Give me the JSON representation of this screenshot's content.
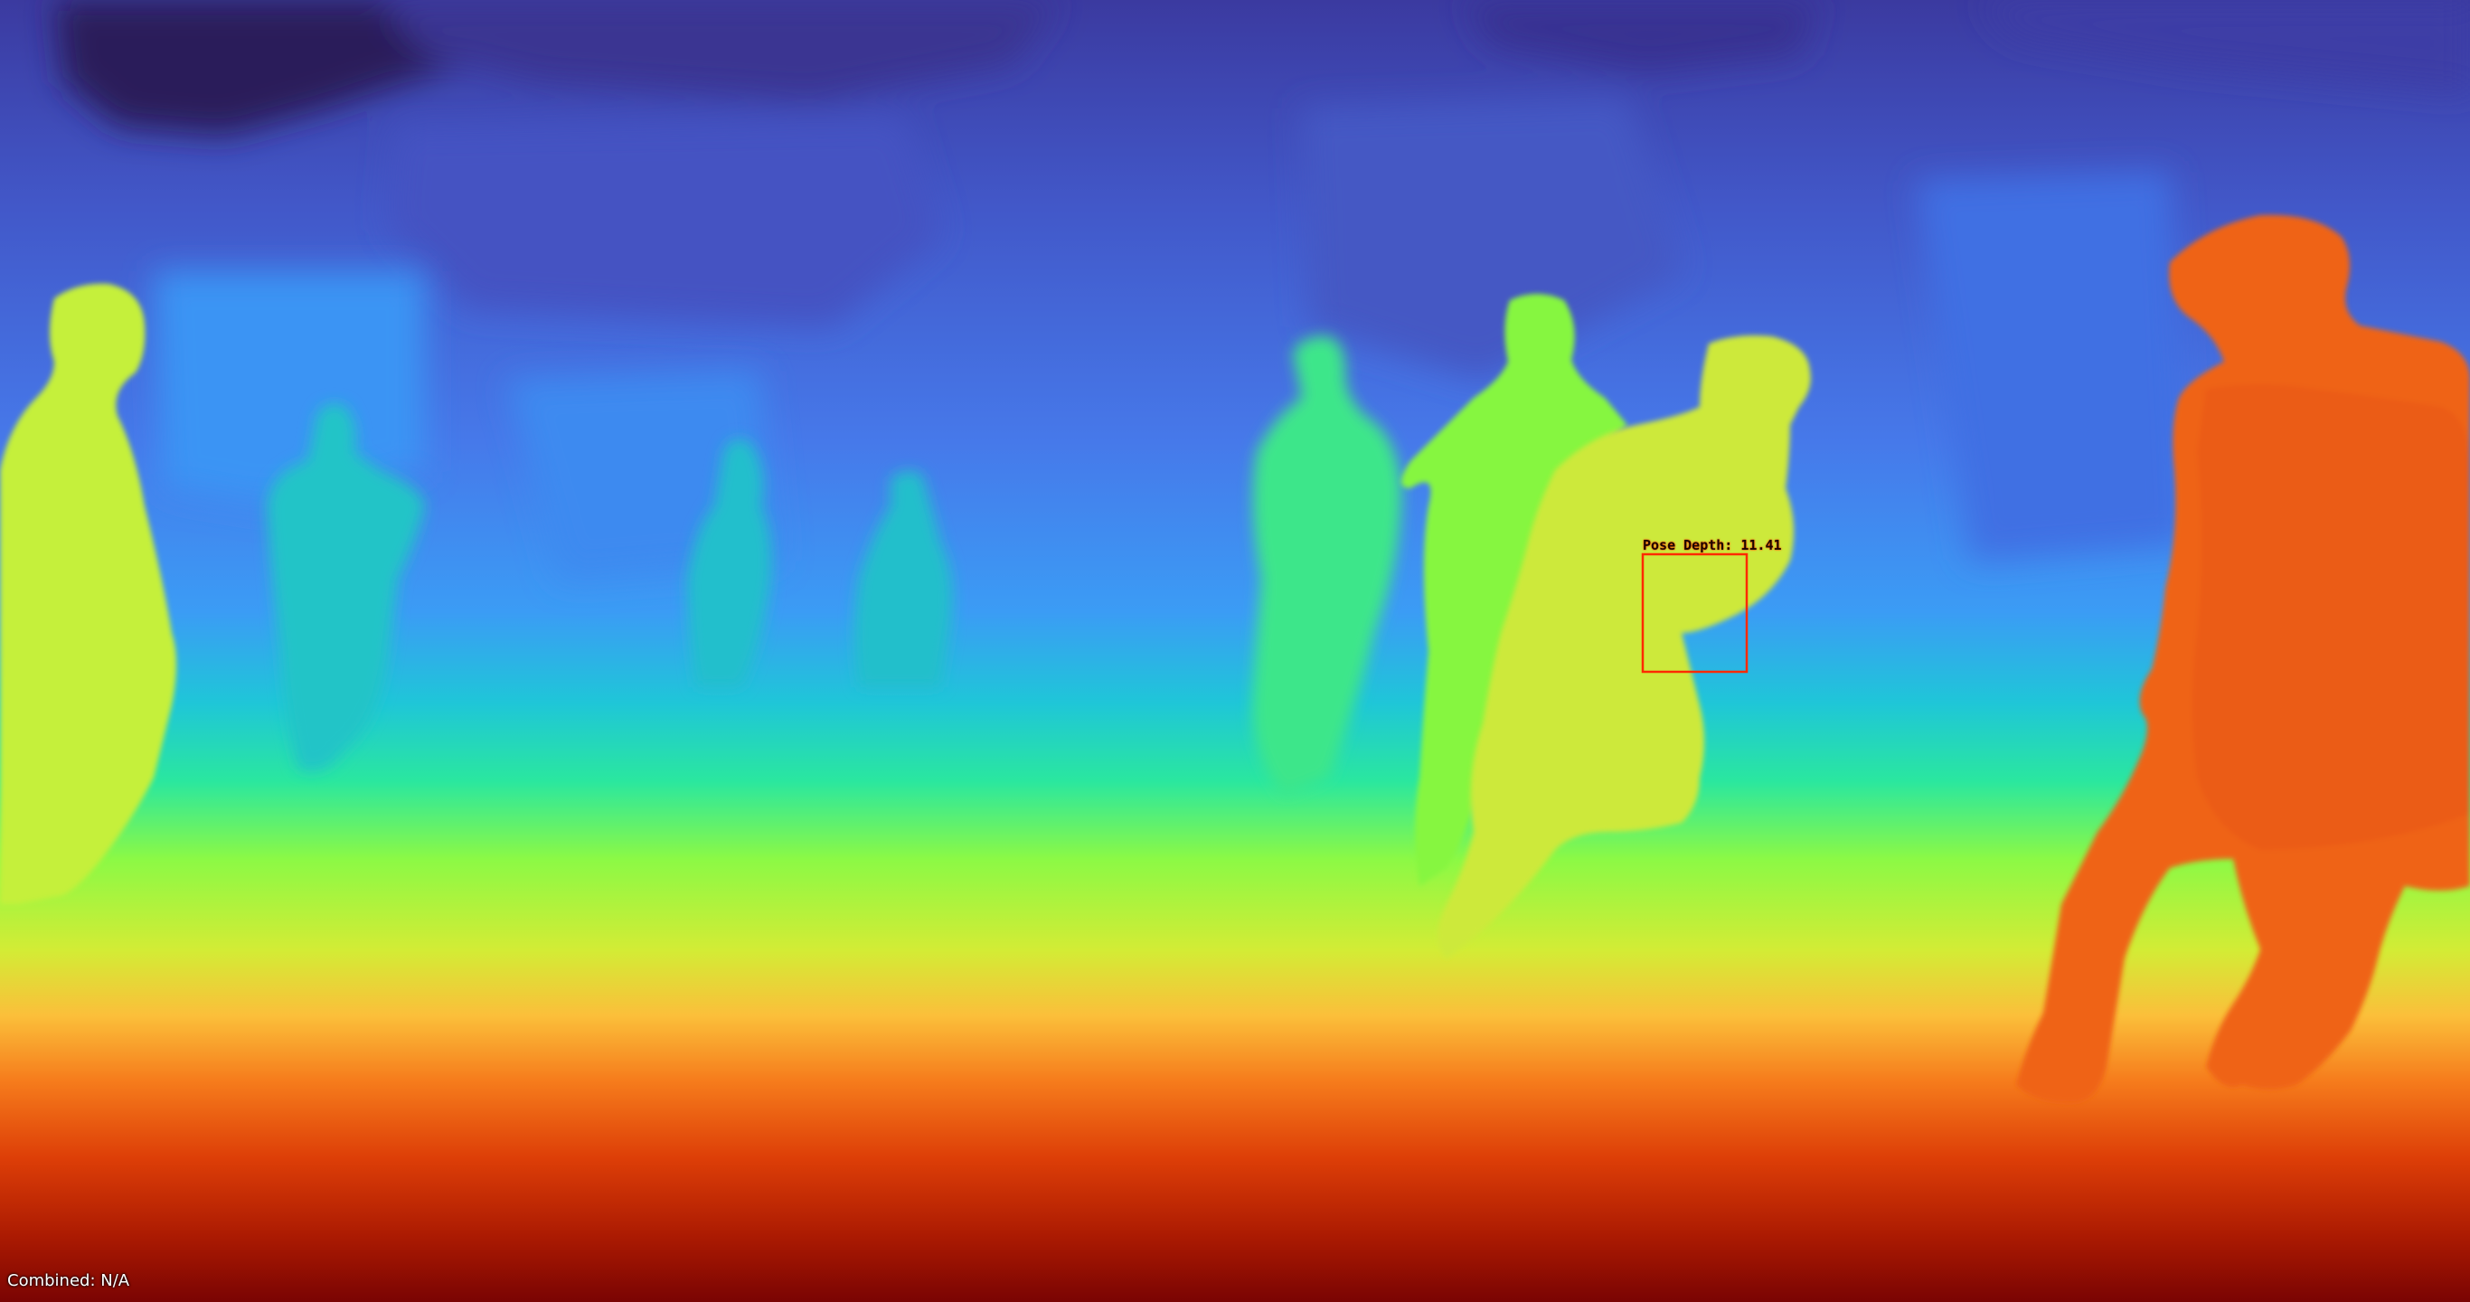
{
  "image": {
    "kind": "depth-map visualization",
    "colormap": "turbo",
    "colors": {
      "far": "#30123b",
      "mid_far": "#4662d7",
      "mid": "#36aaf9",
      "mid_near": "#1ae4b6",
      "near_mid": "#a4fc3c",
      "near": "#fbb938",
      "nearest": "#7a0403",
      "box_color": "#ff2a00"
    }
  },
  "annotation": {
    "label": "Pose Depth: 11.41"
  },
  "status": {
    "combined": "Combined: N/A"
  }
}
